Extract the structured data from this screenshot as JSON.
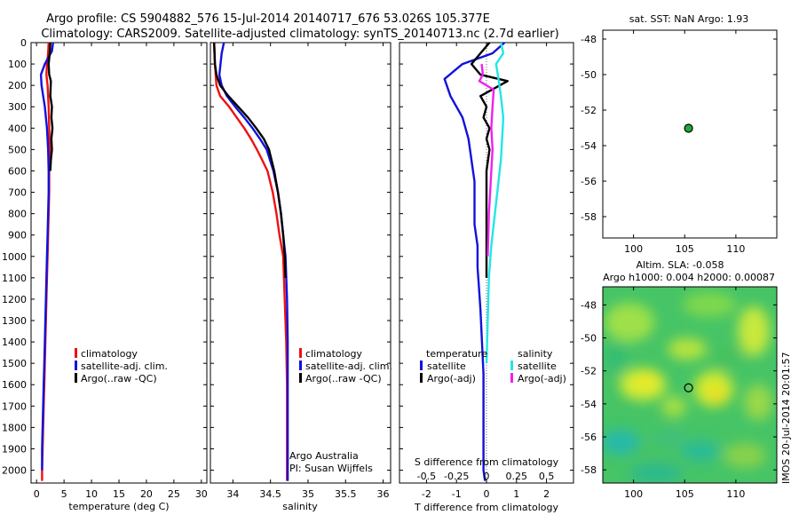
{
  "title": {
    "line1": "Argo profile: CS 5904882_576 15-Jul-2014 20140717_676 53.026S 105.377E",
    "line2": "Climatology: CARS2009. Satellite-adjusted climatology: synTS_20140713.nc (2.7d earlier)"
  },
  "colors": {
    "clim": "#ee1111",
    "sat": "#1111dd",
    "argo": "#000000",
    "sat_s": "#22e6e6",
    "argo_s": "#ee22ee",
    "sst_dot": "#22aa33"
  },
  "chart_data": [
    {
      "id": "temperature",
      "type": "line",
      "xlabel": "temperature (deg C)",
      "xlim": [
        -1,
        31
      ],
      "xticks": [
        0,
        5,
        10,
        15,
        20,
        25,
        30
      ],
      "xtick_labels": [
        "0",
        "5",
        "10",
        "15",
        "20",
        "25",
        "30"
      ],
      "ylim": [
        0,
        2060
      ],
      "yticks": [
        0,
        100,
        200,
        300,
        400,
        500,
        600,
        700,
        800,
        900,
        1000,
        1100,
        1200,
        1300,
        1400,
        1500,
        1600,
        1700,
        1800,
        1900,
        2000
      ],
      "ytick_labels": [
        "0",
        "100",
        "200",
        "300",
        "400",
        "500",
        "600",
        "700",
        "800",
        "900",
        "1000",
        "1100",
        "1200",
        "1300",
        "1400",
        "1500",
        "1600",
        "1700",
        "1800",
        "1900",
        "2000"
      ],
      "legend": [
        "climatology",
        "satellite-adj. clim.",
        "Argo(..raw -QC)"
      ],
      "legend_placement": "lower-center",
      "series": [
        {
          "name": "climatology",
          "color_key": "clim",
          "x": [
            2.2,
            2.1,
            1.9,
            1.8,
            2.0,
            2.2,
            2.3,
            2.4,
            2.3,
            2.3,
            2.2,
            2.1,
            2.0,
            1.9,
            1.8,
            1.7,
            1.6,
            1.5,
            1.4,
            1.3,
            1.2,
            1.1,
            1.0,
            1.0
          ],
          "depth": [
            0,
            50,
            100,
            150,
            200,
            300,
            400,
            500,
            600,
            700,
            800,
            900,
            1000,
            1100,
            1200,
            1300,
            1400,
            1500,
            1600,
            1700,
            1800,
            1900,
            2000,
            2050
          ]
        },
        {
          "name": "satellite-adj. clim.",
          "color_key": "sat",
          "x": [
            3.0,
            2.8,
            1.5,
            0.8,
            0.9,
            1.5,
            1.9,
            2.1,
            2.2,
            2.2,
            2.1,
            2.0,
            1.9,
            1.8,
            1.7,
            1.6,
            1.5,
            1.4,
            1.3,
            1.2,
            1.1,
            1.0,
            1.0
          ],
          "depth": [
            0,
            40,
            100,
            150,
            200,
            300,
            400,
            500,
            600,
            700,
            800,
            900,
            1000,
            1100,
            1200,
            1300,
            1400,
            1500,
            1600,
            1700,
            1800,
            1900,
            2000
          ]
        },
        {
          "name": "Argo",
          "color_key": "argo",
          "x": [
            2.5,
            2.4,
            2.2,
            2.3,
            2.6,
            2.5,
            2.8,
            2.7,
            2.9,
            2.7,
            2.8,
            2.6,
            2.5
          ],
          "depth": [
            0,
            50,
            100,
            150,
            180,
            250,
            300,
            350,
            400,
            450,
            500,
            550,
            600
          ]
        }
      ]
    },
    {
      "id": "salinity",
      "type": "line",
      "xlabel": "salinity",
      "xlim": [
        33.7,
        36.1
      ],
      "xticks": [
        34,
        34.5,
        35,
        35.5,
        36
      ],
      "xtick_labels": [
        "34",
        "34.5",
        "35",
        "35.5",
        "36"
      ],
      "ylim": [
        0,
        2060
      ],
      "yticks": [
        0,
        100,
        200,
        300,
        400,
        500,
        600,
        700,
        800,
        900,
        1000,
        1100,
        1200,
        1300,
        1400,
        1500,
        1600,
        1700,
        1800,
        1900,
        2000
      ],
      "legend": [
        "climatology",
        "satellite-adj. clim.",
        "Argo(..raw -QC)"
      ],
      "legend_placement": "lower-center",
      "annotations": [
        "Argo Australia",
        "PI: Susan Wijffels"
      ],
      "series": [
        {
          "name": "climatology",
          "color_key": "clim",
          "x": [
            33.75,
            33.76,
            33.78,
            33.83,
            33.95,
            34.05,
            34.15,
            34.24,
            34.32,
            34.39,
            34.46,
            34.53,
            34.58,
            34.62,
            34.67,
            34.69,
            34.71,
            34.72,
            34.72,
            34.72
          ],
          "depth": [
            0,
            100,
            200,
            250,
            300,
            350,
            400,
            450,
            500,
            550,
            600,
            700,
            800,
            900,
            1000,
            1200,
            1400,
            1600,
            1800,
            2050
          ]
        },
        {
          "name": "satellite-adj. clim.",
          "color_key": "sat",
          "x": [
            33.88,
            33.85,
            33.82,
            33.85,
            33.92,
            34.03,
            34.15,
            34.26,
            34.36,
            34.45,
            34.54,
            34.6,
            34.64,
            34.67,
            34.7,
            34.72,
            34.73,
            34.73,
            34.73
          ],
          "depth": [
            0,
            50,
            150,
            200,
            250,
            300,
            350,
            400,
            450,
            500,
            600,
            700,
            800,
            900,
            1000,
            1200,
            1400,
            1600,
            2050
          ]
        },
        {
          "name": "Argo",
          "color_key": "argo",
          "x": [
            33.75,
            33.76,
            33.78,
            33.83,
            33.94,
            34.07,
            34.2,
            34.31,
            34.41,
            34.48,
            34.55,
            34.6,
            34.64,
            34.67,
            34.69,
            34.7
          ],
          "depth": [
            0,
            100,
            150,
            200,
            250,
            300,
            350,
            400,
            450,
            500,
            600,
            700,
            800,
            900,
            1000,
            1100
          ]
        }
      ]
    },
    {
      "id": "differences",
      "type": "line",
      "xlabel": "T difference from climatology",
      "xlim": [
        -2.9,
        2.9
      ],
      "xticks": [
        -2,
        -1,
        0,
        1,
        2
      ],
      "xtick_labels": [
        "-2",
        "-1",
        "0",
        "1",
        "2"
      ],
      "top_axis_label": "S difference from climatology",
      "top_tick_labels": [
        "-0.5",
        "-0.25",
        "0",
        "0.25",
        "0.5"
      ],
      "top_tick_values": [
        -0.5,
        -0.25,
        0,
        0.25,
        0.5
      ],
      "ylim": [
        0,
        2060
      ],
      "yticks": [
        0,
        100,
        200,
        300,
        400,
        500,
        600,
        700,
        800,
        900,
        1000,
        1100,
        1200,
        1300,
        1400,
        1500,
        1600,
        1700,
        1800,
        1900,
        2000
      ],
      "legend_headers": [
        "temperature",
        "salinity"
      ],
      "legend_t": [
        "satellite",
        "Argo(-adj)"
      ],
      "legend_s": [
        "satellite",
        "Argo(-adj)"
      ],
      "series": [
        {
          "name": "T satellite",
          "color_key": "sat",
          "x": [
            0.6,
            0.2,
            -0.8,
            -1.4,
            -1.2,
            -0.8,
            -0.6,
            -0.5,
            -0.4,
            -0.4,
            -0.4,
            -0.3,
            -0.3,
            -0.25,
            -0.2,
            -0.15,
            -0.1,
            -0.1,
            -0.1,
            -0.1,
            -0.05
          ],
          "depth": [
            0,
            50,
            100,
            170,
            250,
            350,
            450,
            550,
            650,
            750,
            850,
            950,
            1050,
            1150,
            1250,
            1400,
            1550,
            1700,
            1850,
            2000,
            2050
          ]
        },
        {
          "name": "T Argo",
          "color_key": "argo",
          "x": [
            0.1,
            -0.2,
            -0.5,
            -0.2,
            0.7,
            -0.2,
            0.0,
            -0.1,
            0.1,
            0.0,
            0.1,
            0.05,
            0.0,
            0.0
          ],
          "depth": [
            0,
            50,
            100,
            150,
            180,
            250,
            300,
            350,
            400,
            450,
            500,
            550,
            600,
            1100
          ]
        },
        {
          "name": "S satellite",
          "color_key": "sat_s",
          "x": [
            0.12,
            0.14,
            0.08,
            0.1,
            0.12,
            0.14,
            0.13,
            0.12,
            0.1,
            0.08,
            0.06,
            0.04,
            0.02,
            0.01,
            0.0
          ],
          "depth": [
            0,
            50,
            100,
            170,
            250,
            350,
            450,
            550,
            650,
            750,
            850,
            950,
            1100,
            1300,
            1500
          ]
        },
        {
          "name": "S Argo",
          "color_key": "argo_s",
          "x": [
            -0.04,
            -0.03,
            -0.06,
            0.06,
            0.05,
            0.04,
            0.05,
            0.04,
            0.03,
            0.02,
            0.01
          ],
          "depth": [
            100,
            150,
            180,
            220,
            300,
            400,
            500,
            600,
            700,
            800,
            1000
          ]
        }
      ]
    },
    {
      "id": "sst_map",
      "type": "scatter",
      "title": "sat. SST: NaN Argo: 1.93",
      "xlim": [
        97,
        114
      ],
      "ylim": [
        -59.2,
        -47.5
      ],
      "xticks": [
        100,
        105,
        110
      ],
      "yticks": [
        -48,
        -50,
        -52,
        -54,
        -56,
        -58
      ],
      "xtick_labels": [
        "100",
        "105",
        "110"
      ],
      "ytick_labels": [
        "-48",
        "-50",
        "-52",
        "-54",
        "-56",
        "-58"
      ],
      "points": [
        {
          "lon": 105.377,
          "lat": -53.026
        }
      ]
    },
    {
      "id": "sla_map",
      "type": "heatmap",
      "title_line1": "Altim. SLA: -0.058",
      "title_line2": "Argo h1000: 0.004 h2000: 0.00087",
      "side_label": "IMOS 20-Jul-2014 20:01:57",
      "xlim": [
        97,
        114
      ],
      "ylim": [
        -58.8,
        -46.9
      ],
      "xticks": [
        100,
        105,
        110
      ],
      "yticks": [
        -48,
        -50,
        -52,
        -54,
        -56,
        -58
      ],
      "xtick_labels": [
        "100",
        "105",
        "110"
      ],
      "ytick_labels": [
        "-48",
        "-50",
        "-52",
        "-54",
        "-56",
        "-58"
      ],
      "points": [
        {
          "lon": 105.377,
          "lat": -53.026
        }
      ]
    }
  ]
}
